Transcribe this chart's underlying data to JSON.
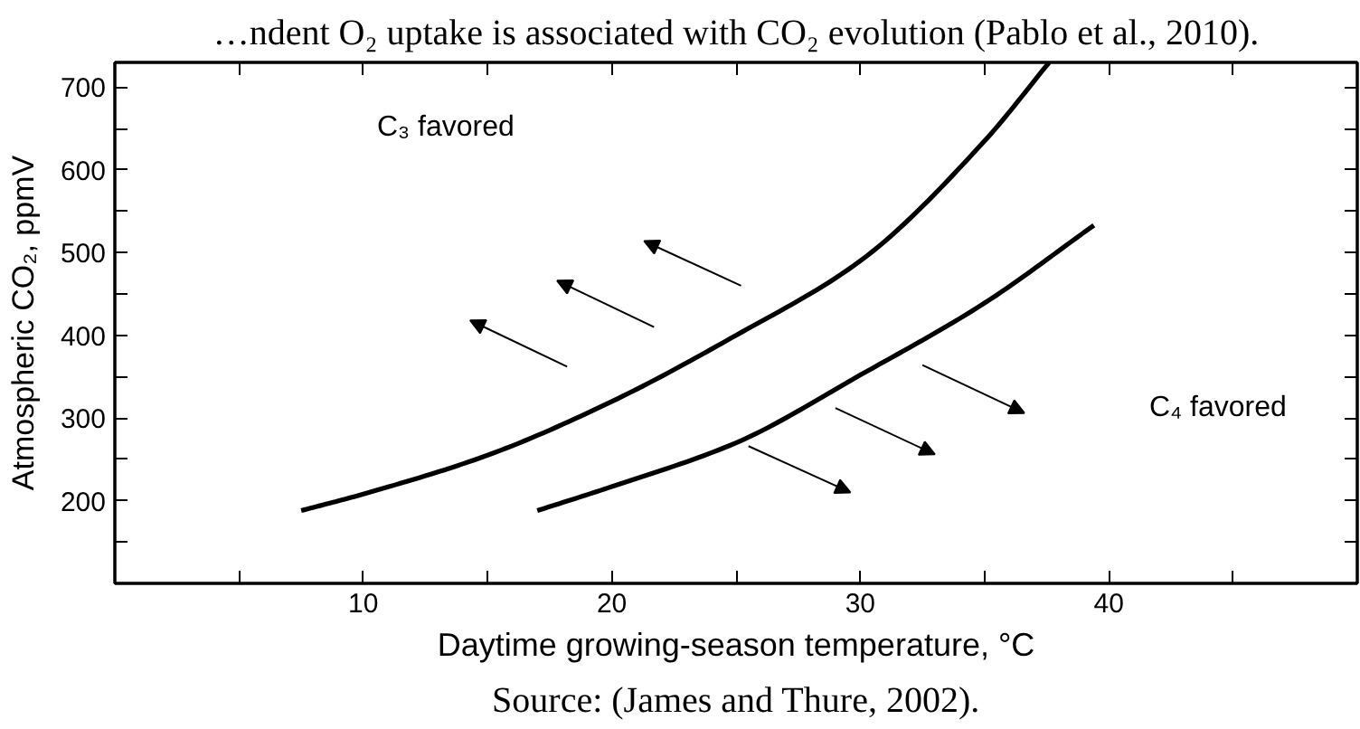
{
  "chart_data": {
    "type": "line",
    "xlabel": "Daytime growing-season temperature, °C",
    "ylabel": "Atmospheric CO₂, ppmV",
    "annotations": [
      "…ndent O₂ uptake is associated with CO₂ evolution (Pablo et al., 2010).",
      "Source: (James and Thure, 2002).",
      "C₃ favored",
      "C₄ favored"
    ],
    "series": [
      {
        "color": "#000000",
        "x": [
          7.5,
          10,
          15,
          20,
          25,
          30,
          35,
          37.6
        ],
        "values": [
          188,
          208,
          255,
          320,
          400,
          490,
          635,
          730
        ]
      },
      {
        "color": "#000000",
        "x": [
          17,
          20,
          25,
          30,
          35,
          39.4
        ],
        "values": [
          188,
          217,
          270,
          352,
          439,
          533
        ]
      }
    ],
    "xlim": [
      0,
      50
    ],
    "ylim": [
      100,
      730
    ],
    "xticks": [
      {
        "value": 5,
        "label": null
      },
      10,
      {
        "value": 15,
        "label": null
      },
      20,
      {
        "value": 25,
        "label": null
      },
      30,
      {
        "value": 35,
        "label": null
      },
      40,
      {
        "value": 45,
        "label": null
      }
    ],
    "yticks": [
      {
        "value": 150,
        "label": null
      },
      200,
      {
        "value": 250,
        "label": null
      },
      300,
      {
        "value": 350,
        "label": null
      },
      400,
      {
        "value": 450,
        "label": null
      },
      500,
      {
        "value": 550,
        "label": null
      },
      600,
      {
        "value": 650,
        "label": null
      },
      700
    ],
    "grid": false,
    "marker": "none",
    "line_style": "solid"
  }
}
